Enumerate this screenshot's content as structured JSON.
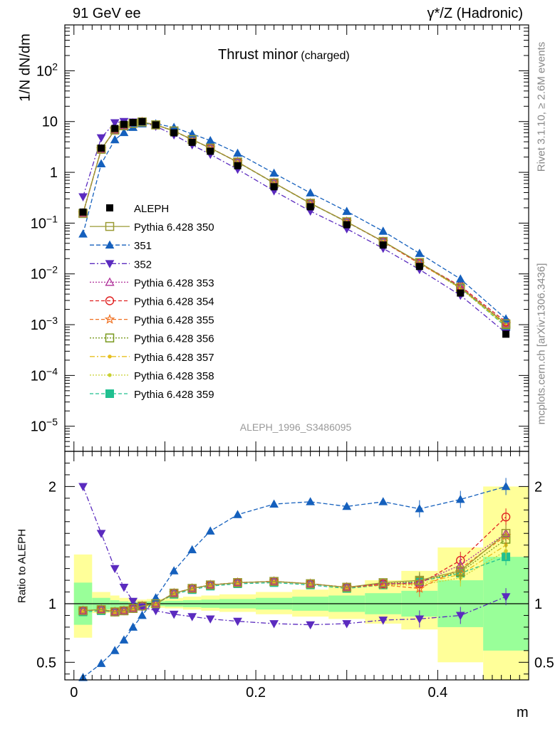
{
  "header": {
    "left": "91 GeV ee",
    "right": "γ*/Z (Hadronic)",
    "plot_title": "Thrust minor",
    "plot_title_sub": "(charged)"
  },
  "side": {
    "rivet": "Rivet 3.1.10, ≥ 2.6M events",
    "mcplots": "mcplots.cern.ch [arXiv:1306.3436]"
  },
  "analysis_id": "ALEPH_1996_S3486095",
  "chart_data": [
    {
      "type": "line",
      "panel": "main",
      "ylabel": "1/N dN/dm",
      "yscale": "log",
      "ylim": [
        3.2e-06,
        800
      ],
      "xlim": [
        -0.01,
        0.5
      ],
      "ytick_labels": [
        {
          "value": 1e-05,
          "base": "10",
          "exp": "−5"
        },
        {
          "value": 0.0001,
          "base": "10",
          "exp": "−4"
        },
        {
          "value": 0.001,
          "base": "10",
          "exp": "−3"
        },
        {
          "value": 0.01,
          "base": "10",
          "exp": "−2"
        },
        {
          "value": 0.1,
          "base": "10",
          "exp": "−1"
        },
        {
          "value": 1,
          "base": "1",
          "exp": ""
        },
        {
          "value": 10,
          "base": "10",
          "exp": ""
        },
        {
          "value": 100,
          "base": "10",
          "exp": "2"
        }
      ],
      "x": [
        0.01,
        0.03,
        0.045,
        0.055,
        0.065,
        0.075,
        0.09,
        0.11,
        0.13,
        0.15,
        0.18,
        0.22,
        0.26,
        0.3,
        0.34,
        0.38,
        0.425,
        0.475
      ],
      "data": {
        "name": "ALEPH",
        "values": [
          0.165,
          3.0,
          7.3,
          8.8,
          9.6,
          10.0,
          8.6,
          6.0,
          3.9,
          2.6,
          1.35,
          0.52,
          0.21,
          0.093,
          0.037,
          0.014,
          0.0042,
          0.00065
        ]
      },
      "legend": [
        {
          "name": "ALEPH",
          "color": "#000000",
          "marker": "square-filled",
          "dash": ""
        },
        {
          "name": "Pythia 6.428 350",
          "color": "#9a9a33",
          "marker": "square-open",
          "dash": ""
        },
        {
          "name": "351",
          "color": "#1560bd",
          "marker": "triangle-up-filled",
          "dash": "6,3"
        },
        {
          "name": "352",
          "color": "#5b2bbf",
          "marker": "triangle-down-filled",
          "dash": "7,3,2,3"
        },
        {
          "name": "Pythia 6.428 353",
          "color": "#b0309a",
          "marker": "triangle-up-open",
          "dash": "2,2"
        },
        {
          "name": "Pythia 6.428 354",
          "color": "#e02020",
          "marker": "circle-open",
          "dash": "5,3"
        },
        {
          "name": "Pythia 6.428 355",
          "color": "#f07020",
          "marker": "star-open",
          "dash": "5,3"
        },
        {
          "name": "Pythia 6.428 356",
          "color": "#7a9a20",
          "marker": "square-open",
          "dash": "2,2"
        },
        {
          "name": "Pythia 6.428 357",
          "color": "#e8c020",
          "marker": "dot",
          "dash": "7,3,2,3"
        },
        {
          "name": "Pythia 6.428 358",
          "color": "#c8d030",
          "marker": "dot",
          "dash": "2,2"
        },
        {
          "name": "Pythia 6.428 359",
          "color": "#20c090",
          "marker": "square-filled",
          "dash": "5,3"
        }
      ]
    },
    {
      "type": "line",
      "panel": "ratio",
      "ylabel": "Ratio to ALEPH",
      "xlabel": "m",
      "ylim": [
        0.35,
        2.3
      ],
      "xlim": [
        -0.01,
        0.5
      ],
      "yticks": [
        0.5,
        1,
        2
      ],
      "xticks": [
        0,
        0.2,
        0.4
      ],
      "band_edges": [
        0.0,
        0.02,
        0.04,
        0.05,
        0.06,
        0.07,
        0.08,
        0.1,
        0.12,
        0.14,
        0.16,
        0.2,
        0.24,
        0.28,
        0.32,
        0.36,
        0.4,
        0.45,
        0.5
      ],
      "band_inner": [
        [
          0.82,
          1.18
        ],
        [
          0.95,
          1.05
        ],
        [
          0.97,
          1.03
        ],
        [
          0.98,
          1.02
        ],
        [
          0.985,
          1.015
        ],
        [
          0.985,
          1.015
        ],
        [
          0.98,
          1.02
        ],
        [
          0.975,
          1.025
        ],
        [
          0.97,
          1.03
        ],
        [
          0.965,
          1.035
        ],
        [
          0.96,
          1.04
        ],
        [
          0.95,
          1.05
        ],
        [
          0.94,
          1.06
        ],
        [
          0.93,
          1.07
        ],
        [
          0.91,
          1.09
        ],
        [
          0.89,
          1.11
        ],
        [
          0.8,
          1.2
        ],
        [
          0.6,
          1.4
        ]
      ],
      "band_outer": [
        [
          0.71,
          1.42
        ],
        [
          0.92,
          1.1
        ],
        [
          0.95,
          1.07
        ],
        [
          0.965,
          1.05
        ],
        [
          0.97,
          1.04
        ],
        [
          0.975,
          1.035
        ],
        [
          0.965,
          1.04
        ],
        [
          0.96,
          1.05
        ],
        [
          0.95,
          1.06
        ],
        [
          0.94,
          1.07
        ],
        [
          0.93,
          1.08
        ],
        [
          0.91,
          1.1
        ],
        [
          0.89,
          1.12
        ],
        [
          0.87,
          1.15
        ],
        [
          0.83,
          1.2
        ],
        [
          0.78,
          1.28
        ],
        [
          0.5,
          1.48
        ],
        [
          0.35,
          2.0
        ]
      ],
      "series": [
        {
          "name": "Pythia 6.428 350",
          "color": "#9a9a33",
          "marker": "square-open",
          "dash": "",
          "values": [
            0.94,
            0.95,
            0.93,
            0.94,
            0.96,
            0.98,
            1.0,
            1.09,
            1.13,
            1.16,
            1.18,
            1.19,
            1.17,
            1.14,
            1.18,
            1.2,
            1.28,
            1.6
          ]
        },
        {
          "name": "351",
          "color": "#1560bd",
          "marker": "triangle-up-filled",
          "dash": "6,3",
          "values": [
            0.37,
            0.49,
            0.6,
            0.69,
            0.8,
            0.9,
            1.05,
            1.28,
            1.46,
            1.62,
            1.76,
            1.85,
            1.87,
            1.83,
            1.87,
            1.81,
            1.89,
            2.0
          ]
        },
        {
          "name": "352",
          "color": "#5b2bbf",
          "marker": "triangle-down-filled",
          "dash": "7,3,2,3",
          "values": [
            2.0,
            1.6,
            1.3,
            1.14,
            1.02,
            0.97,
            0.94,
            0.91,
            0.89,
            0.87,
            0.85,
            0.83,
            0.82,
            0.83,
            0.86,
            0.87,
            0.9,
            1.06
          ]
        },
        {
          "name": "Pythia 6.428 353",
          "color": "#b0309a",
          "marker": "triangle-up-open",
          "dash": "2,2",
          "values": [
            0.94,
            0.95,
            0.93,
            0.94,
            0.96,
            0.98,
            1.0,
            1.09,
            1.13,
            1.16,
            1.18,
            1.19,
            1.17,
            1.14,
            1.17,
            1.18,
            1.33,
            1.6
          ]
        },
        {
          "name": "Pythia 6.428 354",
          "color": "#e02020",
          "marker": "circle-open",
          "dash": "5,3",
          "values": [
            0.94,
            0.95,
            0.93,
            0.94,
            0.96,
            0.98,
            1.0,
            1.09,
            1.13,
            1.16,
            1.18,
            1.19,
            1.17,
            1.14,
            1.17,
            1.17,
            1.37,
            1.74
          ]
        },
        {
          "name": "Pythia 6.428 355",
          "color": "#f07020",
          "marker": "star-open",
          "dash": "5,3",
          "values": [
            0.94,
            0.95,
            0.93,
            0.94,
            0.96,
            0.98,
            1.0,
            1.09,
            1.13,
            1.16,
            1.18,
            1.19,
            1.17,
            1.14,
            1.16,
            1.13,
            1.3,
            1.58
          ]
        },
        {
          "name": "Pythia 6.428 356",
          "color": "#7a9a20",
          "marker": "square-open",
          "dash": "2,2",
          "values": [
            0.94,
            0.95,
            0.93,
            0.94,
            0.96,
            0.98,
            1.0,
            1.09,
            1.13,
            1.16,
            1.18,
            1.19,
            1.17,
            1.14,
            1.17,
            1.19,
            1.27,
            1.55
          ]
        },
        {
          "name": "Pythia 6.428 357",
          "color": "#e8c020",
          "marker": "dot",
          "dash": "7,3,2,3",
          "values": [
            0.94,
            0.95,
            0.93,
            0.94,
            0.96,
            0.98,
            1.0,
            1.09,
            1.13,
            1.16,
            1.18,
            1.19,
            1.17,
            1.14,
            1.17,
            1.17,
            1.25,
            1.5
          ]
        },
        {
          "name": "Pythia 6.428 358",
          "color": "#c8d030",
          "marker": "dot",
          "dash": "2,2",
          "values": [
            0.94,
            0.95,
            0.93,
            0.94,
            0.96,
            0.98,
            1.0,
            1.09,
            1.13,
            1.16,
            1.18,
            1.19,
            1.17,
            1.14,
            1.16,
            1.16,
            1.22,
            1.45
          ]
        },
        {
          "name": "Pythia 6.428 359",
          "color": "#20c090",
          "marker": "square-filled",
          "dash": "5,3",
          "values": [
            0.93,
            0.94,
            0.93,
            0.94,
            0.96,
            0.98,
            1.0,
            1.08,
            1.12,
            1.15,
            1.17,
            1.18,
            1.16,
            1.13,
            1.16,
            1.19,
            1.26,
            1.4
          ]
        }
      ]
    }
  ]
}
